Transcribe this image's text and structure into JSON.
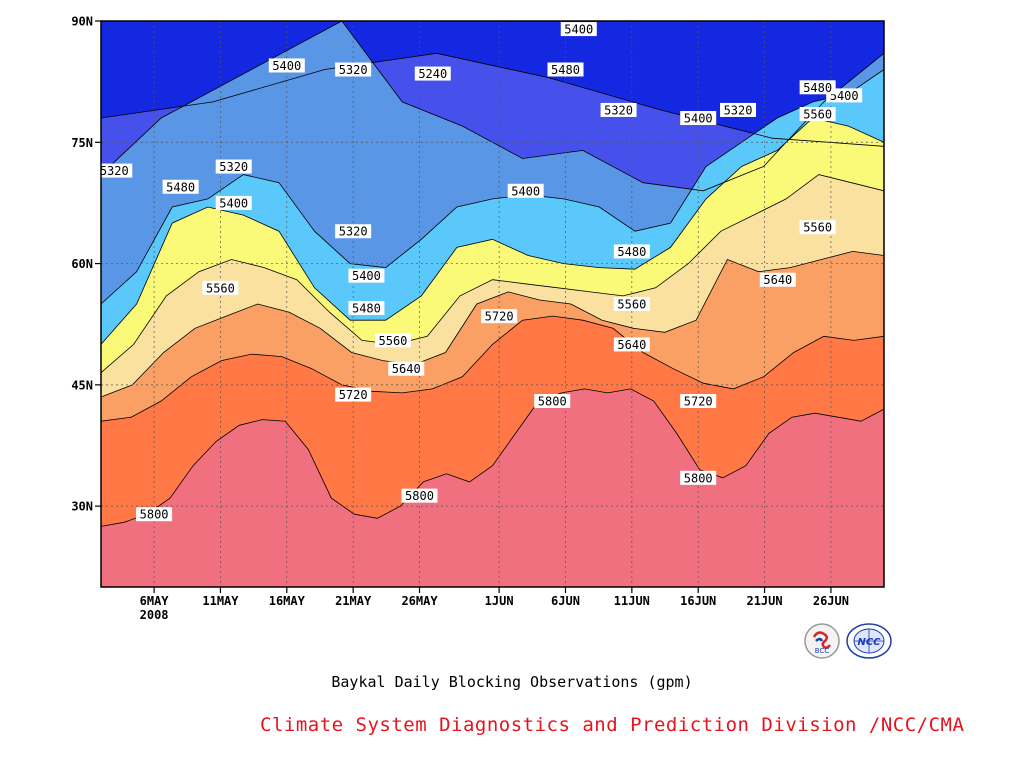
{
  "chart_data": {
    "type": "heatmap",
    "subtype": "filled-contour",
    "title": "Baykal Daily Blocking Observations (gpm)",
    "credit": "Climate System Diagnostics and Prediction Division /NCC/CMA",
    "x_ticks": [
      "6MAY",
      "11MAY",
      "16MAY",
      "21MAY",
      "26MAY",
      "1JUN",
      "6JUN",
      "11JUN",
      "16JUN",
      "21JUN",
      "26JUN"
    ],
    "x_tick_dates": [
      "2008-05-06",
      "2008-05-11",
      "2008-05-16",
      "2008-05-21",
      "2008-05-26",
      "2008-06-01",
      "2008-06-06",
      "2008-06-11",
      "2008-06-16",
      "2008-06-21",
      "2008-06-26"
    ],
    "x_year_label": "2008",
    "xlim": [
      "2008-05-02",
      "2008-06-30"
    ],
    "y_ticks": [
      "30N",
      "45N",
      "60N",
      "75N",
      "90N"
    ],
    "y_tick_values": [
      30,
      45,
      60,
      75,
      90
    ],
    "ylim": [
      20,
      90
    ],
    "grid": true,
    "contour_levels": [
      5240,
      5320,
      5400,
      5480,
      5560,
      5640,
      5720,
      5800
    ],
    "level_colors": [
      "#1328e0",
      "#4650eb",
      "#5a96e6",
      "#5ac8fa",
      "#fafa78",
      "#fae1a0",
      "#faa064",
      "#ff7846",
      "#f07080"
    ],
    "series": [
      {
        "level": 5800,
        "lat": [
          27.5,
          28,
          29,
          31,
          35,
          38,
          40,
          40.7,
          40.5,
          37,
          31,
          29,
          28.5,
          30,
          33,
          34,
          33,
          35,
          39,
          43,
          44,
          44.5,
          44,
          44.5,
          43,
          39,
          34.5,
          33.5,
          35,
          39,
          41,
          41.5,
          41,
          40.5,
          42
        ]
      },
      {
        "level": 5720,
        "lat": [
          40.5,
          41,
          43,
          46,
          48,
          48.8,
          48.5,
          47,
          45,
          44.2,
          44,
          44.5,
          46,
          50,
          53,
          53.5,
          53,
          52,
          49,
          47,
          45.2,
          44.5,
          46,
          49,
          51,
          50.5,
          51
        ]
      },
      {
        "level": 5640,
        "lat": [
          43.5,
          45,
          49,
          52,
          53.5,
          55,
          54,
          52,
          49,
          48,
          47.5,
          49,
          55,
          56.5,
          55.5,
          55,
          53,
          52,
          51.5,
          53,
          60.5,
          59,
          59.5,
          60.5,
          61.5,
          61
        ]
      },
      {
        "level": 5560,
        "lat": [
          46.5,
          50,
          56,
          59,
          60.5,
          59.5,
          58,
          54,
          50.5,
          50,
          51,
          56,
          58,
          57.5,
          57,
          56.5,
          56,
          57,
          60,
          64,
          66,
          68,
          71,
          70,
          69
        ]
      },
      {
        "level": 5480,
        "lat": [
          50,
          55,
          65,
          67,
          66,
          64,
          57,
          53,
          53,
          56,
          62,
          63,
          61,
          60,
          59.5,
          59.3,
          62,
          68,
          72,
          74,
          78,
          77,
          75
        ]
      },
      {
        "level": 5400,
        "lat": [
          55,
          59,
          67,
          68,
          71,
          70,
          64,
          60,
          59.5,
          63,
          67,
          68,
          68.5,
          68,
          67,
          64,
          65,
          72,
          75,
          78,
          80,
          81,
          84
        ]
      },
      {
        "level": 5320,
        "lat": [
          71,
          78,
          82,
          86,
          90,
          80,
          77,
          73,
          74,
          70,
          69,
          72,
          80,
          86
        ]
      },
      {
        "level": 5240,
        "lat": [
          78,
          80,
          84,
          86,
          83,
          79,
          75.5,
          74.5
        ]
      }
    ],
    "contour_labels": [
      {
        "text": "5240",
        "date": "2008-05-27",
        "lat": 83.5
      },
      {
        "text": "5320",
        "date": "2008-05-03",
        "lat": 71.5
      },
      {
        "text": "5320",
        "date": "2008-05-12",
        "lat": 72
      },
      {
        "text": "5320",
        "date": "2008-05-21",
        "lat": 84
      },
      {
        "text": "5320",
        "date": "2008-05-21",
        "lat": 64
      },
      {
        "text": "5320",
        "date": "2008-06-10",
        "lat": 79
      },
      {
        "text": "5320",
        "date": "2008-06-19",
        "lat": 79
      },
      {
        "text": "5400",
        "date": "2008-05-16",
        "lat": 84.5
      },
      {
        "text": "5400",
        "date": "2008-05-12",
        "lat": 67.5
      },
      {
        "text": "5400",
        "date": "2008-05-22",
        "lat": 58.5
      },
      {
        "text": "5400",
        "date": "2008-06-03",
        "lat": 69
      },
      {
        "text": "5400",
        "date": "2008-06-07",
        "lat": 89
      },
      {
        "text": "5400",
        "date": "2008-06-16",
        "lat": 78
      },
      {
        "text": "5400",
        "date": "2008-06-27",
        "lat": 80.8
      },
      {
        "text": "5480",
        "date": "2008-05-08",
        "lat": 69.5
      },
      {
        "text": "5480",
        "date": "2008-05-22",
        "lat": 54.5
      },
      {
        "text": "5480",
        "date": "2008-06-06",
        "lat": 84
      },
      {
        "text": "5480",
        "date": "2008-06-11",
        "lat": 61.5
      },
      {
        "text": "5480",
        "date": "2008-06-25",
        "lat": 81.8
      },
      {
        "text": "5560",
        "date": "2008-05-11",
        "lat": 57
      },
      {
        "text": "5560",
        "date": "2008-05-24",
        "lat": 50.5
      },
      {
        "text": "5560",
        "date": "2008-06-11",
        "lat": 55
      },
      {
        "text": "5560",
        "date": "2008-06-25",
        "lat": 78.5
      },
      {
        "text": "5560",
        "date": "2008-06-25",
        "lat": 64.5
      },
      {
        "text": "5640",
        "date": "2008-05-25",
        "lat": 47
      },
      {
        "text": "5640",
        "date": "2008-06-11",
        "lat": 50
      },
      {
        "text": "5640",
        "date": "2008-06-22",
        "lat": 58
      },
      {
        "text": "5720",
        "date": "2008-05-21",
        "lat": 43.8
      },
      {
        "text": "5720",
        "date": "2008-06-01",
        "lat": 53.5
      },
      {
        "text": "5720",
        "date": "2008-06-16",
        "lat": 43
      },
      {
        "text": "5800",
        "date": "2008-05-06",
        "lat": 29
      },
      {
        "text": "5800",
        "date": "2008-05-26",
        "lat": 31.3
      },
      {
        "text": "5800",
        "date": "2008-06-05",
        "lat": 43
      },
      {
        "text": "5800",
        "date": "2008-06-16",
        "lat": 33.5
      }
    ]
  },
  "logos": [
    {
      "name": "bcc-logo",
      "text": "BCC",
      "icon": "bcc-emblem"
    },
    {
      "name": "ncc-logo",
      "text": "NCC",
      "icon": "ncc-globe-emblem"
    }
  ],
  "colors": {
    "title": "#000000",
    "credit": "#e6141e",
    "frame": "#000000",
    "contour": "#000000"
  }
}
